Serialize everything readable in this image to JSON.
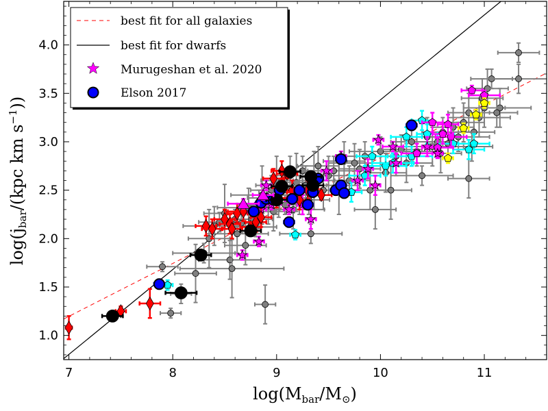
{
  "chart_data": {
    "type": "scatter",
    "xlabel_main": "log(M",
    "xlabel_sub": "bar",
    "xlabel_mid": "/M",
    "xlabel_sub2": "⊙",
    "xlabel_end": ")",
    "ylabel_main": "log(j",
    "ylabel_sub": "bar",
    "ylabel_mid": "/(kpc km s",
    "ylabel_sup": "−1",
    "ylabel_end": "))",
    "xlim": [
      6.95,
      11.6
    ],
    "ylim": [
      0.75,
      4.45
    ],
    "xticks": [
      7,
      8,
      9,
      10,
      11
    ],
    "yticks": [
      1.0,
      1.5,
      2.0,
      2.5,
      3.0,
      3.5,
      4.0
    ],
    "legend": [
      {
        "label": "best fit for all galaxies",
        "style": "dashed-line",
        "color": "#ff0000"
      },
      {
        "label": "best fit for dwarfs",
        "style": "solid-line",
        "color": "#000000"
      },
      {
        "label": "Murugeshan et al.  2020",
        "style": "star",
        "color": "#ff00ff"
      },
      {
        "label": "Elson 2017",
        "style": "circle",
        "color": "#0000ff"
      }
    ],
    "fit_lines": [
      {
        "name": "best fit for all galaxies",
        "x": [
          6.95,
          11.6
        ],
        "y": [
          1.17,
          3.71
        ]
      },
      {
        "name": "best fit for dwarfs",
        "x": [
          6.95,
          11.16
        ],
        "y": [
          0.76,
          4.45
        ]
      }
    ],
    "series": [
      {
        "name": "grey sample",
        "marker": "circle",
        "color": "#808080",
        "size": 7,
        "points": [
          [
            7.9,
            1.71,
            0.15,
            0.05
          ],
          [
            7.98,
            1.23,
            0.1,
            0.05
          ],
          [
            8.08,
            1.43,
            0.1,
            0.1
          ],
          [
            8.22,
            1.64,
            0.2,
            0.3
          ],
          [
            8.3,
            1.85,
            0.3,
            0.1
          ],
          [
            8.35,
            2.0,
            0.2,
            0.3
          ],
          [
            8.4,
            2.13,
            0.3,
            0.2
          ],
          [
            8.45,
            2.17,
            0.2,
            0.1
          ],
          [
            8.5,
            2.26,
            0.2,
            0.3
          ],
          [
            8.55,
            1.78,
            0.3,
            0.2
          ],
          [
            8.57,
            1.69,
            0.5,
            0.3
          ],
          [
            8.6,
            2.2,
            0.2,
            0.1
          ],
          [
            8.62,
            2.05,
            0.3,
            0.2
          ],
          [
            8.66,
            2.16,
            0.2,
            0.1
          ],
          [
            8.7,
            1.93,
            0.2,
            0.2
          ],
          [
            8.73,
            2.32,
            0.3,
            0.2
          ],
          [
            8.76,
            2.2,
            0.2,
            0.15
          ],
          [
            8.8,
            2.12,
            0.2,
            0.1
          ],
          [
            8.83,
            2.3,
            0.2,
            0.2
          ],
          [
            8.86,
            2.45,
            0.3,
            0.3
          ],
          [
            8.89,
            1.32,
            0.1,
            0.2
          ],
          [
            8.92,
            2.35,
            0.3,
            0.2
          ],
          [
            8.95,
            2.5,
            0.2,
            0.15
          ],
          [
            8.97,
            2.28,
            0.2,
            0.2
          ],
          [
            9.0,
            2.55,
            0.2,
            0.3
          ],
          [
            9.02,
            2.42,
            0.3,
            0.2
          ],
          [
            9.05,
            2.6,
            0.2,
            0.2
          ],
          [
            9.08,
            2.35,
            0.2,
            0.1
          ],
          [
            9.1,
            2.5,
            0.2,
            0.2
          ],
          [
            9.13,
            2.65,
            0.15,
            0.2
          ],
          [
            9.16,
            2.3,
            0.3,
            0.2
          ],
          [
            9.19,
            2.58,
            0.2,
            0.3
          ],
          [
            9.22,
            2.45,
            0.2,
            0.2
          ],
          [
            9.25,
            2.7,
            0.3,
            0.15
          ],
          [
            9.28,
            2.55,
            0.2,
            0.2
          ],
          [
            9.31,
            2.4,
            0.2,
            0.15
          ],
          [
            9.33,
            2.05,
            0.3,
            0.1
          ],
          [
            9.36,
            2.6,
            0.2,
            0.3
          ],
          [
            9.4,
            2.75,
            0.2,
            0.2
          ],
          [
            9.45,
            2.5,
            0.25,
            0.2
          ],
          [
            9.5,
            2.65,
            0.2,
            0.2
          ],
          [
            9.55,
            2.7,
            0.25,
            0.15
          ],
          [
            9.6,
            2.55,
            0.2,
            0.3
          ],
          [
            9.65,
            2.8,
            0.2,
            0.2
          ],
          [
            9.7,
            2.6,
            0.2,
            0.15
          ],
          [
            9.75,
            2.78,
            0.25,
            0.2
          ],
          [
            9.8,
            2.72,
            0.2,
            0.2
          ],
          [
            9.85,
            2.85,
            0.2,
            0.15
          ],
          [
            9.9,
            2.5,
            0.2,
            0.2
          ],
          [
            9.95,
            2.3,
            0.2,
            0.2
          ],
          [
            10.0,
            2.9,
            0.3,
            0.15
          ],
          [
            10.05,
            2.68,
            0.2,
            0.2
          ],
          [
            10.1,
            2.5,
            0.2,
            0.3
          ],
          [
            10.15,
            2.85,
            0.2,
            0.2
          ],
          [
            10.2,
            2.92,
            0.2,
            0.15
          ],
          [
            10.25,
            2.78,
            0.25,
            0.2
          ],
          [
            10.3,
            3.0,
            0.2,
            0.2
          ],
          [
            10.35,
            2.9,
            0.2,
            0.15
          ],
          [
            10.4,
            2.65,
            0.3,
            0.1
          ],
          [
            10.45,
            3.05,
            0.2,
            0.2
          ],
          [
            10.5,
            2.95,
            0.3,
            0.2
          ],
          [
            10.55,
            3.0,
            0.2,
            0.1
          ],
          [
            10.6,
            3.1,
            0.2,
            0.15
          ],
          [
            10.65,
            2.98,
            0.2,
            0.2
          ],
          [
            10.7,
            3.15,
            0.2,
            0.2
          ],
          [
            10.75,
            3.05,
            0.3,
            0.15
          ],
          [
            10.8,
            3.2,
            0.2,
            0.2
          ],
          [
            10.85,
            3.3,
            0.2,
            0.2
          ],
          [
            10.9,
            3.1,
            0.2,
            0.15
          ],
          [
            10.95,
            3.25,
            0.3,
            0.2
          ],
          [
            10.98,
            3.45,
            0.2,
            0.2
          ],
          [
            11.0,
            3.35,
            0.2,
            0.2
          ],
          [
            11.03,
            3.55,
            0.2,
            0.2
          ],
          [
            11.07,
            3.65,
            0.2,
            0.1
          ],
          [
            11.15,
            3.35,
            0.3,
            0.2
          ],
          [
            10.85,
            2.62,
            0.2,
            0.2
          ],
          [
            10.88,
            2.95,
            0.2,
            0.15
          ],
          [
            11.33,
            3.65,
            0.3,
            0.15
          ],
          [
            11.33,
            3.92,
            0.2,
            0.1
          ],
          [
            11.12,
            3.3,
            0.2,
            0.15
          ],
          [
            10.58,
            2.88,
            0.2,
            0.2
          ]
        ]
      },
      {
        "name": "cyan pentagons",
        "marker": "pentagon",
        "color": "#00ffff",
        "size": 8,
        "points": [
          [
            7.95,
            1.52,
            0.05,
            0.05
          ],
          [
            9.18,
            2.04,
            0.05,
            0.05
          ],
          [
            9.72,
            2.48,
            0.1,
            0.1
          ],
          [
            9.85,
            2.65,
            0.15,
            0.1
          ],
          [
            9.92,
            2.85,
            0.15,
            0.1
          ],
          [
            10.05,
            2.75,
            0.2,
            0.1
          ],
          [
            10.12,
            2.78,
            0.2,
            0.1
          ],
          [
            10.25,
            3.05,
            0.15,
            0.1
          ],
          [
            10.3,
            2.85,
            0.2,
            0.1
          ],
          [
            10.4,
            3.22,
            0.1,
            0.1
          ],
          [
            10.45,
            3.08,
            0.1,
            0.1
          ],
          [
            10.85,
            2.92,
            0.15,
            0.1
          ],
          [
            10.9,
            2.98,
            0.15,
            0.1
          ],
          [
            10.7,
            2.98,
            0.15,
            0.1
          ]
        ]
      },
      {
        "name": "magenta pentagons",
        "marker": "pentagon",
        "color": "#ff00ff",
        "size": 8,
        "points": [
          [
            10.5,
            3.2,
            0.1,
            0.1
          ],
          [
            10.55,
            2.94,
            0.15,
            0.1
          ],
          [
            10.65,
            3.18,
            0.1,
            0.1
          ],
          [
            10.68,
            3.05,
            0.15,
            0.1
          ],
          [
            10.88,
            3.53,
            0.1,
            0.05
          ],
          [
            11.0,
            3.48,
            0.15,
            0.05
          ],
          [
            10.35,
            2.88,
            0.15,
            0.1
          ],
          [
            10.6,
            3.08,
            0.1,
            0.1
          ]
        ]
      },
      {
        "name": "yellow pentagons",
        "marker": "pentagon",
        "color": "#ffff00",
        "size": 8,
        "points": [
          [
            10.8,
            3.14,
            0.05,
            0.05
          ],
          [
            10.92,
            3.28,
            0.05,
            0.05
          ],
          [
            11.0,
            3.4,
            0.05,
            0.05
          ],
          [
            10.65,
            2.83,
            0.05,
            0.05
          ]
        ]
      },
      {
        "name": "Murugeshan et al.  2020",
        "marker": "star",
        "color": "#ff00ff",
        "size": 8,
        "points": [
          [
            8.67,
            1.83,
            0.05,
            0.05
          ],
          [
            8.83,
            1.97,
            0.05,
            0.05
          ],
          [
            8.85,
            2.3,
            0.05,
            0.05
          ],
          [
            8.9,
            2.55,
            0.05,
            0.05
          ],
          [
            8.95,
            2.35,
            0.05,
            0.05
          ],
          [
            9.03,
            2.4,
            0.05,
            0.05
          ],
          [
            9.12,
            2.3,
            0.05,
            0.05
          ],
          [
            9.25,
            2.35,
            0.05,
            0.1
          ],
          [
            9.33,
            2.2,
            0.05,
            0.1
          ],
          [
            9.35,
            2.62,
            0.05,
            0.05
          ],
          [
            9.48,
            2.7,
            0.05,
            0.1
          ],
          [
            9.78,
            2.6,
            0.05,
            0.1
          ],
          [
            9.88,
            2.72,
            0.05,
            0.1
          ],
          [
            9.95,
            2.55,
            0.05,
            0.1
          ],
          [
            9.98,
            3.02,
            0.05,
            0.05
          ],
          [
            10.12,
            2.95,
            0.1,
            0.05
          ],
          [
            10.15,
            2.78,
            0.05,
            0.1
          ],
          [
            10.45,
            2.95,
            0.05,
            0.1
          ],
          [
            10.55,
            2.88,
            0.05,
            0.05
          ],
          [
            9.62,
            2.85,
            0.05,
            0.05
          ]
        ]
      },
      {
        "name": "red diamonds",
        "marker": "diamond",
        "color": "#ff0000",
        "size": 9,
        "points": [
          [
            7.0,
            1.08,
            0.03,
            0.12
          ],
          [
            7.5,
            1.25,
            0.05,
            0.05
          ],
          [
            7.78,
            1.33,
            0.1,
            0.15
          ],
          [
            8.32,
            2.13,
            0.1,
            0.1
          ],
          [
            8.38,
            2.1,
            0.1,
            0.1
          ],
          [
            8.5,
            2.2,
            0.1,
            0.1
          ],
          [
            8.55,
            2.15,
            0.1,
            0.1
          ],
          [
            8.57,
            2.1,
            0.1,
            0.1
          ],
          [
            8.62,
            2.26,
            0.1,
            0.1
          ],
          [
            8.68,
            2.28,
            0.15,
            0.1
          ],
          [
            8.75,
            2.12,
            0.1,
            0.05
          ],
          [
            8.8,
            2.17,
            0.1,
            0.1
          ],
          [
            8.85,
            2.22,
            0.1,
            0.1
          ],
          [
            8.97,
            2.62,
            0.1,
            0.1
          ],
          [
            9.0,
            2.42,
            0.1,
            0.1
          ],
          [
            9.05,
            2.7,
            0.1,
            0.1
          ],
          [
            9.1,
            2.67,
            0.1,
            0.05
          ],
          [
            9.15,
            2.5,
            0.1,
            0.1
          ],
          [
            9.2,
            2.48,
            0.1,
            0.05
          ],
          [
            9.3,
            2.5,
            0.1,
            0.1
          ],
          [
            9.43,
            2.45,
            0.1,
            0.05
          ],
          [
            9.22,
            2.4,
            0.1,
            0.1
          ]
        ]
      },
      {
        "name": "Elson 2017",
        "marker": "circle",
        "color": "#0000ff",
        "size": 11,
        "points": [
          [
            7.87,
            1.53,
            0.05,
            0.05
          ],
          [
            8.78,
            2.28,
            0.05,
            0.05
          ],
          [
            8.85,
            2.37,
            0.05,
            0.05
          ],
          [
            8.9,
            2.41,
            0.05,
            0.05
          ],
          [
            8.97,
            2.4,
            0.05,
            0.05
          ],
          [
            9.03,
            2.5,
            0.05,
            0.05
          ],
          [
            9.12,
            2.17,
            0.05,
            0.05
          ],
          [
            9.15,
            2.41,
            0.05,
            0.05
          ],
          [
            9.22,
            2.5,
            0.05,
            0.05
          ],
          [
            9.3,
            2.35,
            0.05,
            0.05
          ],
          [
            9.35,
            2.48,
            0.05,
            0.05
          ],
          [
            9.4,
            2.62,
            0.05,
            0.05
          ],
          [
            9.57,
            2.5,
            0.05,
            0.05
          ],
          [
            9.62,
            2.55,
            0.05,
            0.05
          ],
          [
            9.65,
            2.47,
            0.05,
            0.05
          ],
          [
            9.62,
            2.82,
            0.05,
            0.05
          ],
          [
            10.3,
            3.17,
            0.05,
            0.05
          ]
        ]
      },
      {
        "name": "black circles",
        "marker": "circle",
        "color": "#000000",
        "size": 14,
        "points": [
          [
            7.42,
            1.2,
            0.1,
            0.05
          ],
          [
            8.08,
            1.44,
            0.15,
            0.05
          ],
          [
            8.27,
            1.83,
            0.1,
            0.05
          ],
          [
            8.75,
            2.08,
            0.1,
            0.05
          ],
          [
            9.05,
            2.54,
            0.1,
            0.05
          ],
          [
            9.13,
            2.69,
            0.1,
            0.05
          ],
          [
            9.33,
            2.64,
            0.1,
            0.05
          ],
          [
            9.35,
            2.55,
            0.1,
            0.05
          ],
          [
            9.0,
            2.4,
            0.1,
            0.05
          ]
        ]
      },
      {
        "name": "magenta triangles",
        "marker": "triangle",
        "color": "#ff00ff",
        "size": 12,
        "points": [
          [
            8.68,
            2.36,
            0.15,
            0.05
          ],
          [
            8.87,
            2.45,
            0.1,
            0.05
          ]
        ]
      }
    ]
  }
}
